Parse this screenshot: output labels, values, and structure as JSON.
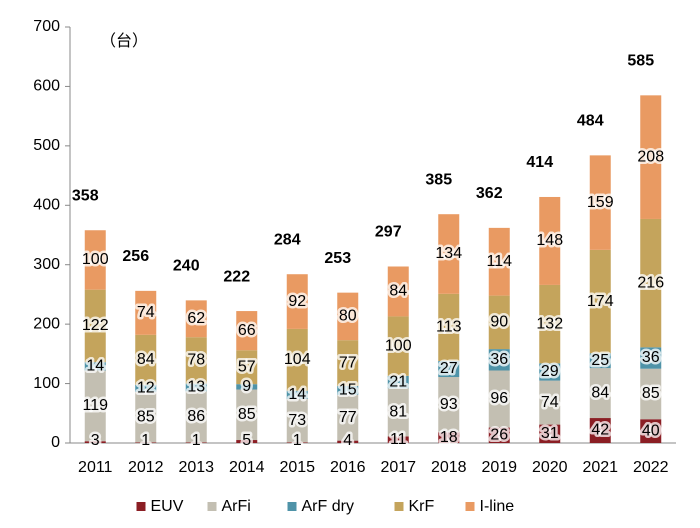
{
  "chart_data": {
    "type": "stacked_bar",
    "unit_label": "（台）",
    "categories": [
      "2011",
      "2012",
      "2013",
      "2014",
      "2015",
      "2016",
      "2017",
      "2018",
      "2019",
      "2020",
      "2021",
      "2022"
    ],
    "series": [
      {
        "name": "EUV",
        "color": "#8b1e24",
        "values": [
          3,
          1,
          1,
          5,
          1,
          4,
          11,
          18,
          26,
          31,
          42,
          40
        ]
      },
      {
        "name": "ArFi",
        "color": "#c3bfb2",
        "values": [
          119,
          85,
          86,
          85,
          73,
          77,
          81,
          93,
          96,
          74,
          84,
          85
        ]
      },
      {
        "name": "ArF dry",
        "color": "#4f93a8",
        "values": [
          14,
          12,
          13,
          9,
          14,
          15,
          21,
          27,
          36,
          29,
          25,
          36
        ]
      },
      {
        "name": "KrF",
        "color": "#c4a45c",
        "values": [
          122,
          84,
          78,
          57,
          104,
          77,
          100,
          113,
          90,
          132,
          174,
          216
        ]
      },
      {
        "name": "I-line",
        "color": "#e99a62",
        "values": [
          100,
          74,
          62,
          66,
          92,
          80,
          84,
          134,
          114,
          148,
          159,
          208
        ]
      }
    ],
    "totals": [
      358,
      256,
      240,
      222,
      284,
      253,
      297,
      385,
      362,
      414,
      484,
      585
    ],
    "ylim": [
      0,
      700
    ],
    "yticks": [
      0,
      100,
      200,
      300,
      400,
      500,
      600,
      700
    ],
    "grid": false
  }
}
